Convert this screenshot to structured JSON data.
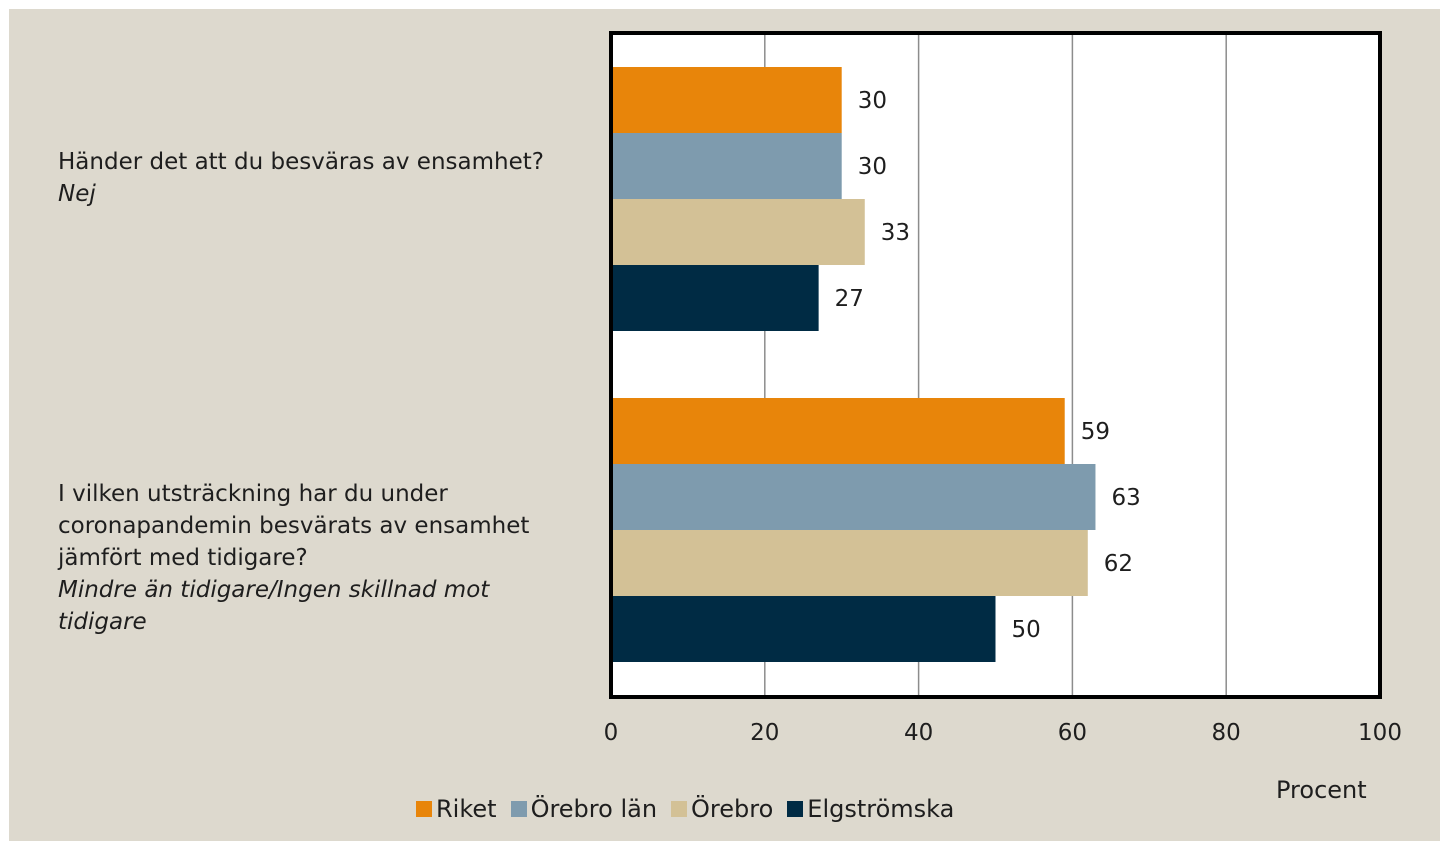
{
  "chart_data": {
    "type": "bar",
    "orientation": "horizontal",
    "categories": [
      {
        "question": "Händer det att du besväras av ensamhet?",
        "answer": "Nej"
      },
      {
        "question": "I vilken utsträckning har du under coronapandemin besvärats av ensamhet jämfört med tidigare?",
        "answer": "Mindre än tidigare/Ingen skillnad mot tidigare"
      }
    ],
    "series": [
      {
        "name": "Riket",
        "color": "#E8850A",
        "values": [
          30,
          59
        ]
      },
      {
        "name": "Örebro län",
        "color": "#7E9BAE",
        "values": [
          30,
          63
        ]
      },
      {
        "name": "Örebro",
        "color": "#D3C196",
        "values": [
          33,
          62
        ]
      },
      {
        "name": "Elgströmska",
        "color": "#002B44",
        "values": [
          27,
          50
        ]
      }
    ],
    "xlim": [
      0,
      100
    ],
    "xticks": [
      "0",
      "20",
      "40",
      "60",
      "80",
      "100"
    ],
    "xlabel": "Procent",
    "grid": true,
    "legend_position": "bottom"
  }
}
